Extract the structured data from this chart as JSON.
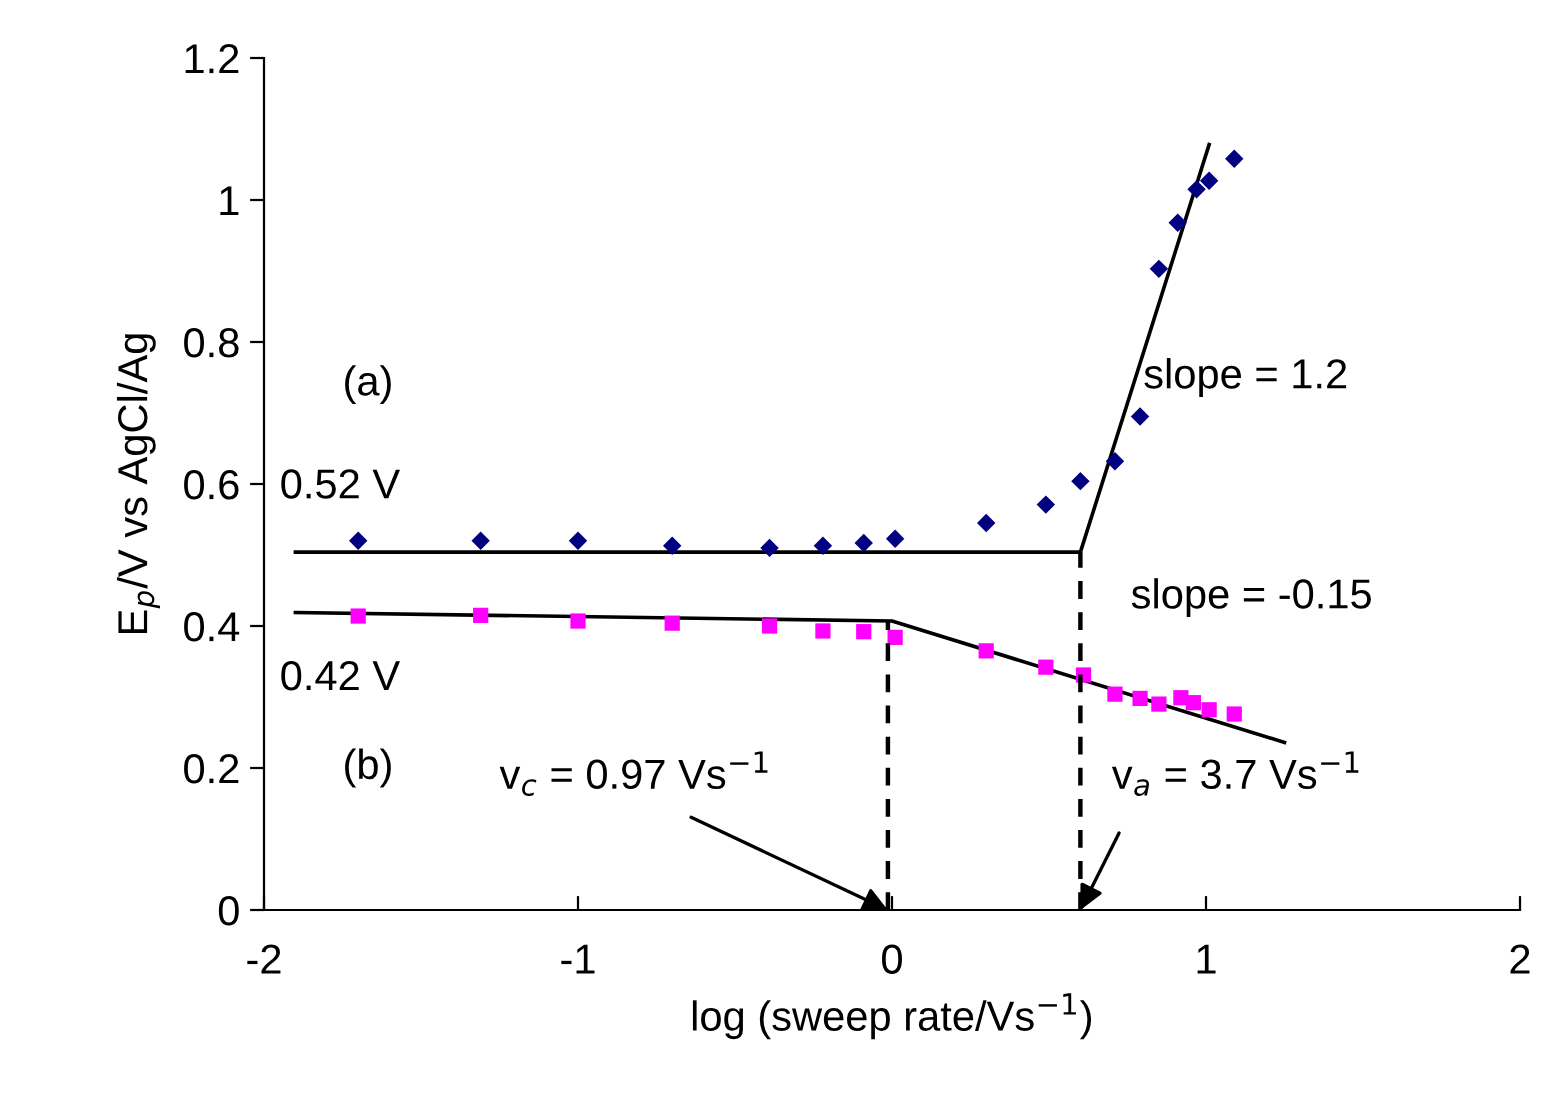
{
  "chart_data": {
    "type": "scatter",
    "xlabel": "log (sweep rate/Vs$^{−1}$)",
    "ylabel": "E$_{p}$/V vs AgCl/Ag",
    "xlim": [
      -2,
      2
    ],
    "xticks": [
      -2,
      -1,
      0,
      1,
      2
    ],
    "ylim": [
      0,
      1.2
    ],
    "yticks": [
      0,
      0.2,
      0.4,
      0.6,
      0.8,
      1,
      1.2
    ],
    "grid": false,
    "legend": false,
    "series": [
      {
        "marker": "diamond",
        "color": "#000080",
        "x": [
          -1.7,
          -1.31,
          -1.0,
          -0.7,
          -0.39,
          -0.22,
          -0.09,
          0.01,
          0.3,
          0.49,
          0.6,
          0.71,
          0.79,
          0.85,
          0.91,
          0.97,
          1.01,
          1.09
        ],
        "values": [
          0.52,
          0.52,
          0.52,
          0.513,
          0.51,
          0.513,
          0.517,
          0.523,
          0.545,
          0.571,
          0.604,
          0.632,
          0.695,
          0.903,
          0.968,
          1.015,
          1.027,
          1.058
        ]
      },
      {
        "marker": "square",
        "color": "#ff00ff",
        "x": [
          -1.7,
          -1.31,
          -1.0,
          -0.7,
          -0.39,
          -0.22,
          -0.09,
          0.01,
          0.3,
          0.49,
          0.61,
          0.71,
          0.79,
          0.85,
          0.92,
          0.96,
          1.01,
          1.09
        ],
        "values": [
          0.414,
          0.415,
          0.407,
          0.404,
          0.4,
          0.393,
          0.392,
          0.384,
          0.365,
          0.342,
          0.331,
          0.304,
          0.298,
          0.29,
          0.299,
          0.292,
          0.282,
          0.276
        ]
      },
      {
        "type": "line",
        "line_style": "solid",
        "color": "#000000",
        "x": [
          -1.9,
          0.6,
          1.01
        ],
        "values": [
          0.504,
          0.504,
          1.078
        ]
      },
      {
        "type": "line",
        "line_style": "solid",
        "color": "#000000",
        "x": [
          -1.9,
          0.0,
          1.25
        ],
        "values": [
          0.419,
          0.407,
          0.236
        ]
      },
      {
        "type": "line",
        "line_style": "dashed",
        "color": "#000000",
        "x": [
          -0.013,
          -0.013
        ],
        "values": [
          0,
          0.407
        ]
      },
      {
        "type": "line",
        "line_style": "dashed",
        "color": "#000000",
        "x": [
          0.6,
          0.6
        ],
        "values": [
          0,
          0.504
        ]
      }
    ],
    "annotations": [
      "(a)",
      "(b)",
      "0.52 V",
      "0.42 V",
      "slope = 1.2",
      "slope = -0.15",
      {
        "text": "v$_{c}$ = 0.97 Vs$^{−1}$",
        "x": -0.013,
        "y": 0.0
      },
      {
        "text": "v$_{a}$ = 3.7 Vs$^{−1}$",
        "x": 0.6,
        "y": 0.0
      }
    ]
  }
}
